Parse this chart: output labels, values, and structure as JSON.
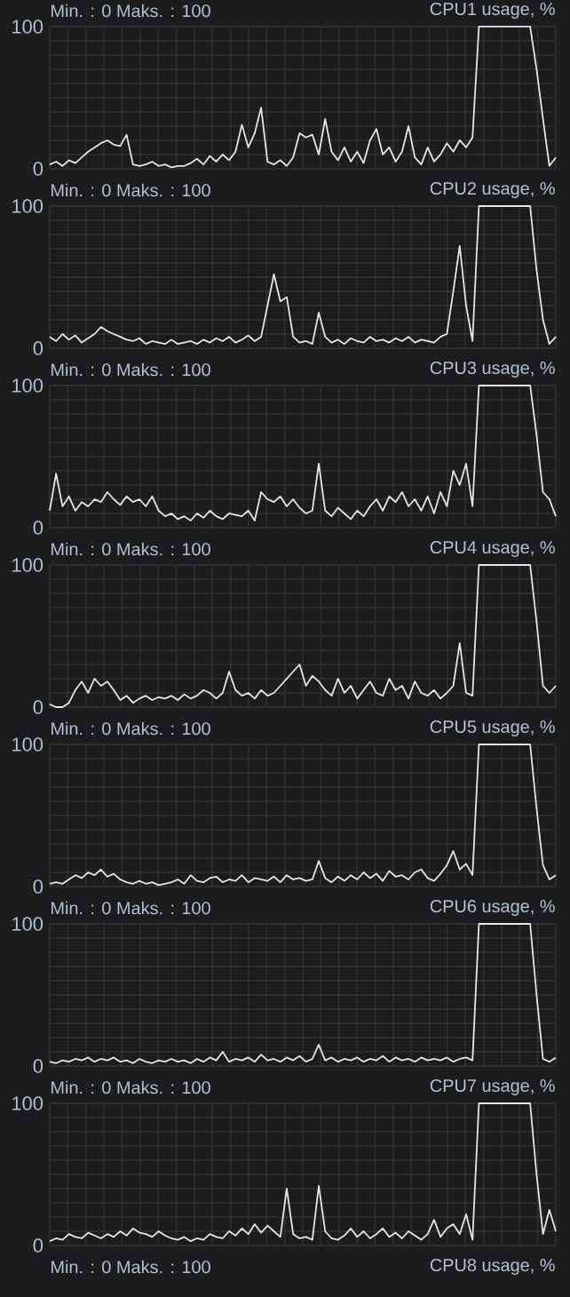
{
  "chart_data": [
    {
      "type": "line",
      "title": "CPU1 usage, %",
      "subtitle": "Min. : 0 Maks. : 100",
      "color": "#e6e6e6",
      "ylim": [
        0,
        100
      ],
      "yticks": [
        0,
        100
      ],
      "grid": true,
      "tick_labels": "y",
      "categories": [
        null,
        null,
        null,
        null,
        null,
        null,
        null,
        null,
        null,
        null,
        null,
        null,
        null,
        null,
        null,
        null,
        null,
        null,
        null,
        null,
        null,
        null,
        null,
        null,
        null,
        null,
        null,
        null,
        null,
        null,
        null,
        null,
        null,
        null,
        null,
        null,
        null,
        null,
        null,
        null,
        null,
        null,
        null,
        null,
        null,
        null,
        null,
        null,
        null,
        null,
        null,
        null,
        null,
        null,
        null,
        null,
        null,
        null,
        null,
        null,
        null,
        null,
        null,
        null,
        null,
        null,
        null,
        null,
        null,
        null,
        null,
        null,
        null,
        null,
        null,
        null,
        null,
        null,
        null,
        null
      ],
      "values": [
        3,
        5,
        2,
        6,
        4,
        8,
        12,
        15,
        18,
        20,
        17,
        16,
        24,
        3,
        2,
        3,
        5,
        2,
        3,
        1,
        2,
        2,
        4,
        7,
        3,
        9,
        5,
        10,
        6,
        12,
        31,
        15,
        25,
        43,
        5,
        3,
        6,
        2,
        8,
        25,
        22,
        24,
        10,
        35,
        12,
        6,
        15,
        5,
        12,
        4,
        20,
        28,
        10,
        15,
        5,
        12,
        30,
        8,
        3,
        15,
        5,
        10,
        18,
        12,
        20,
        15,
        22,
        100,
        100,
        100,
        100,
        100,
        100,
        100,
        100,
        100,
        70,
        35,
        2,
        8
      ]
    },
    {
      "type": "line",
      "title": "CPU2 usage, %",
      "subtitle": "Min. : 0 Maks. : 100",
      "color": "#e6e6e6",
      "ylim": [
        0,
        100
      ],
      "yticks": [
        0,
        100
      ],
      "grid": true,
      "tick_labels": "y",
      "categories": [
        null,
        null,
        null,
        null,
        null,
        null,
        null,
        null,
        null,
        null,
        null,
        null,
        null,
        null,
        null,
        null,
        null,
        null,
        null,
        null,
        null,
        null,
        null,
        null,
        null,
        null,
        null,
        null,
        null,
        null,
        null,
        null,
        null,
        null,
        null,
        null,
        null,
        null,
        null,
        null,
        null,
        null,
        null,
        null,
        null,
        null,
        null,
        null,
        null,
        null,
        null,
        null,
        null,
        null,
        null,
        null,
        null,
        null,
        null,
        null,
        null,
        null,
        null,
        null,
        null,
        null,
        null,
        null,
        null,
        null,
        null,
        null,
        null,
        null,
        null,
        null,
        null,
        null,
        null,
        null
      ],
      "values": [
        8,
        5,
        10,
        6,
        9,
        4,
        7,
        10,
        15,
        12,
        10,
        8,
        6,
        5,
        7,
        3,
        5,
        4,
        3,
        6,
        3,
        4,
        5,
        3,
        6,
        4,
        7,
        5,
        8,
        4,
        6,
        9,
        5,
        8,
        30,
        52,
        33,
        36,
        8,
        4,
        5,
        3,
        25,
        8,
        4,
        6,
        3,
        7,
        5,
        4,
        8,
        5,
        6,
        4,
        7,
        5,
        8,
        4,
        6,
        5,
        4,
        8,
        10,
        40,
        72,
        30,
        5,
        100,
        100,
        100,
        100,
        100,
        100,
        100,
        100,
        100,
        55,
        20,
        3,
        8
      ]
    },
    {
      "type": "line",
      "title": "CPU3 usage, %",
      "subtitle": "Min. : 0 Maks. : 100",
      "color": "#e6e6e6",
      "ylim": [
        0,
        100
      ],
      "yticks": [
        0,
        100
      ],
      "grid": true,
      "tick_labels": "y",
      "categories": [
        null,
        null,
        null,
        null,
        null,
        null,
        null,
        null,
        null,
        null,
        null,
        null,
        null,
        null,
        null,
        null,
        null,
        null,
        null,
        null,
        null,
        null,
        null,
        null,
        null,
        null,
        null,
        null,
        null,
        null,
        null,
        null,
        null,
        null,
        null,
        null,
        null,
        null,
        null,
        null,
        null,
        null,
        null,
        null,
        null,
        null,
        null,
        null,
        null,
        null,
        null,
        null,
        null,
        null,
        null,
        null,
        null,
        null,
        null,
        null,
        null,
        null,
        null,
        null,
        null,
        null,
        null,
        null,
        null,
        null,
        null,
        null,
        null,
        null,
        null,
        null,
        null,
        null,
        null,
        null
      ],
      "values": [
        12,
        38,
        15,
        22,
        12,
        18,
        15,
        20,
        18,
        25,
        20,
        16,
        22,
        18,
        20,
        15,
        22,
        12,
        8,
        10,
        6,
        8,
        5,
        10,
        7,
        12,
        8,
        6,
        10,
        9,
        8,
        12,
        5,
        25,
        20,
        18,
        22,
        15,
        20,
        14,
        10,
        12,
        45,
        12,
        8,
        14,
        10,
        6,
        12,
        8,
        15,
        20,
        12,
        22,
        18,
        25,
        15,
        20,
        12,
        22,
        10,
        25,
        15,
        40,
        30,
        45,
        15,
        100,
        100,
        100,
        100,
        100,
        100,
        100,
        100,
        100,
        65,
        25,
        20,
        8
      ]
    },
    {
      "type": "line",
      "title": "CPU4 usage, %",
      "subtitle": "Min. : 0 Maks. : 100",
      "color": "#e6e6e6",
      "ylim": [
        0,
        100
      ],
      "yticks": [
        0,
        100
      ],
      "grid": true,
      "tick_labels": "y",
      "categories": [
        null,
        null,
        null,
        null,
        null,
        null,
        null,
        null,
        null,
        null,
        null,
        null,
        null,
        null,
        null,
        null,
        null,
        null,
        null,
        null,
        null,
        null,
        null,
        null,
        null,
        null,
        null,
        null,
        null,
        null,
        null,
        null,
        null,
        null,
        null,
        null,
        null,
        null,
        null,
        null,
        null,
        null,
        null,
        null,
        null,
        null,
        null,
        null,
        null,
        null,
        null,
        null,
        null,
        null,
        null,
        null,
        null,
        null,
        null,
        null,
        null,
        null,
        null,
        null,
        null,
        null,
        null,
        null,
        null,
        null,
        null,
        null,
        null,
        null,
        null,
        null,
        null,
        null,
        null,
        null
      ],
      "values": [
        2,
        0,
        0,
        3,
        12,
        18,
        10,
        20,
        15,
        18,
        12,
        5,
        8,
        3,
        6,
        8,
        5,
        7,
        6,
        8,
        5,
        9,
        6,
        8,
        12,
        10,
        6,
        10,
        25,
        12,
        8,
        10,
        6,
        12,
        8,
        10,
        15,
        20,
        25,
        30,
        15,
        22,
        18,
        12,
        8,
        20,
        10,
        15,
        6,
        12,
        18,
        10,
        8,
        20,
        12,
        15,
        6,
        18,
        10,
        8,
        12,
        6,
        10,
        15,
        45,
        10,
        8,
        100,
        100,
        100,
        100,
        100,
        100,
        100,
        100,
        100,
        60,
        15,
        10,
        15
      ]
    },
    {
      "type": "line",
      "title": "CPU5 usage, %",
      "subtitle": "Min. : 0 Maks. : 100",
      "color": "#e6e6e6",
      "ylim": [
        0,
        100
      ],
      "yticks": [
        0,
        100
      ],
      "grid": true,
      "tick_labels": "y",
      "categories": [
        null,
        null,
        null,
        null,
        null,
        null,
        null,
        null,
        null,
        null,
        null,
        null,
        null,
        null,
        null,
        null,
        null,
        null,
        null,
        null,
        null,
        null,
        null,
        null,
        null,
        null,
        null,
        null,
        null,
        null,
        null,
        null,
        null,
        null,
        null,
        null,
        null,
        null,
        null,
        null,
        null,
        null,
        null,
        null,
        null,
        null,
        null,
        null,
        null,
        null,
        null,
        null,
        null,
        null,
        null,
        null,
        null,
        null,
        null,
        null,
        null,
        null,
        null,
        null,
        null,
        null,
        null,
        null,
        null,
        null,
        null,
        null,
        null,
        null,
        null,
        null,
        null,
        null,
        null,
        null
      ],
      "values": [
        2,
        3,
        2,
        5,
        8,
        6,
        10,
        8,
        12,
        7,
        9,
        5,
        3,
        2,
        4,
        2,
        3,
        1,
        2,
        3,
        5,
        2,
        8,
        4,
        3,
        6,
        7,
        3,
        5,
        4,
        8,
        3,
        6,
        5,
        4,
        7,
        3,
        8,
        5,
        6,
        4,
        5,
        18,
        6,
        3,
        7,
        4,
        8,
        5,
        10,
        6,
        9,
        4,
        11,
        7,
        8,
        5,
        10,
        12,
        6,
        4,
        9,
        15,
        25,
        12,
        16,
        8,
        100,
        100,
        100,
        100,
        100,
        100,
        100,
        100,
        100,
        55,
        15,
        5,
        8
      ]
    },
    {
      "type": "line",
      "title": "CPU6 usage, %",
      "subtitle": "Min. : 0 Maks. : 100",
      "color": "#e6e6e6",
      "ylim": [
        0,
        100
      ],
      "yticks": [
        0,
        100
      ],
      "grid": true,
      "tick_labels": "y",
      "categories": [
        null,
        null,
        null,
        null,
        null,
        null,
        null,
        null,
        null,
        null,
        null,
        null,
        null,
        null,
        null,
        null,
        null,
        null,
        null,
        null,
        null,
        null,
        null,
        null,
        null,
        null,
        null,
        null,
        null,
        null,
        null,
        null,
        null,
        null,
        null,
        null,
        null,
        null,
        null,
        null,
        null,
        null,
        null,
        null,
        null,
        null,
        null,
        null,
        null,
        null,
        null,
        null,
        null,
        null,
        null,
        null,
        null,
        null,
        null,
        null,
        null,
        null,
        null,
        null,
        null,
        null,
        null,
        null,
        null,
        null,
        null,
        null,
        null,
        null,
        null,
        null,
        null,
        null,
        null,
        null
      ],
      "values": [
        3,
        2,
        4,
        3,
        5,
        4,
        6,
        3,
        5,
        4,
        6,
        3,
        4,
        2,
        5,
        3,
        2,
        4,
        3,
        5,
        3,
        4,
        2,
        5,
        3,
        6,
        4,
        10,
        3,
        5,
        4,
        6,
        3,
        8,
        4,
        5,
        3,
        6,
        4,
        7,
        3,
        5,
        15,
        4,
        6,
        3,
        5,
        4,
        6,
        3,
        5,
        4,
        7,
        3,
        6,
        4,
        5,
        3,
        6,
        4,
        5,
        4,
        6,
        3,
        5,
        6,
        4,
        100,
        100,
        100,
        100,
        100,
        100,
        100,
        100,
        100,
        50,
        5,
        3,
        6
      ]
    },
    {
      "type": "line",
      "title": "CPU7 usage, %",
      "subtitle": "Min. : 0 Maks. : 100",
      "color": "#e6e6e6",
      "ylim": [
        0,
        100
      ],
      "yticks": [
        0,
        100
      ],
      "grid": true,
      "tick_labels": "y",
      "categories": [
        null,
        null,
        null,
        null,
        null,
        null,
        null,
        null,
        null,
        null,
        null,
        null,
        null,
        null,
        null,
        null,
        null,
        null,
        null,
        null,
        null,
        null,
        null,
        null,
        null,
        null,
        null,
        null,
        null,
        null,
        null,
        null,
        null,
        null,
        null,
        null,
        null,
        null,
        null,
        null,
        null,
        null,
        null,
        null,
        null,
        null,
        null,
        null,
        null,
        null,
        null,
        null,
        null,
        null,
        null,
        null,
        null,
        null,
        null,
        null,
        null,
        null,
        null,
        null,
        null,
        null,
        null,
        null,
        null,
        null,
        null,
        null,
        null,
        null,
        null,
        null,
        null,
        null,
        null,
        null
      ],
      "values": [
        3,
        5,
        4,
        8,
        6,
        5,
        9,
        7,
        5,
        8,
        6,
        10,
        7,
        12,
        9,
        8,
        6,
        10,
        7,
        5,
        4,
        6,
        3,
        5,
        4,
        8,
        6,
        5,
        10,
        7,
        12,
        8,
        15,
        9,
        14,
        10,
        6,
        40,
        8,
        5,
        6,
        4,
        42,
        10,
        5,
        4,
        7,
        12,
        6,
        10,
        5,
        8,
        12,
        6,
        9,
        5,
        10,
        7,
        4,
        8,
        18,
        6,
        12,
        15,
        8,
        22,
        4,
        100,
        100,
        100,
        100,
        100,
        100,
        100,
        100,
        100,
        50,
        8,
        25,
        10
      ]
    },
    {
      "type": "other",
      "title": "CPU8 usage, %",
      "subtitle": "Min. : 0 Maks. : 100"
    }
  ]
}
